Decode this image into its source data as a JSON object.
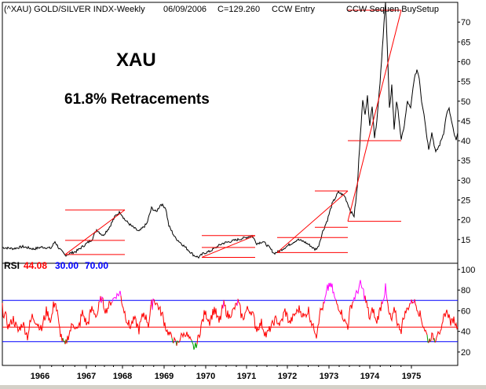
{
  "header": {
    "symbol_line": "(^XAU) GOLD/SILVER INDX-Weekly",
    "date": "06/09/2006",
    "close": "C=129.260",
    "signal": "CCW Entry",
    "setup": "CCW Sequen BuySetup"
  },
  "annotations": {
    "title": "XAU",
    "subtitle": "61.8% Retracements"
  },
  "rsi_legend": {
    "label": "RSI",
    "value": "44.08",
    "low": "30.00",
    "high": "70.00",
    "value_color": "#ff0000",
    "band_color": "#0000ff"
  },
  "chart_data": [
    {
      "type": "line",
      "panel": "price",
      "title": "(^XAU) GOLD/SILVER INDX-Weekly",
      "y_ticks": [
        15,
        20,
        25,
        30,
        35,
        40,
        45,
        50,
        55,
        60,
        65,
        70
      ],
      "ylim": [
        9,
        75
      ],
      "x_ticks": [
        "1966",
        "1967",
        "1968",
        "1969",
        "1970",
        "1971",
        "1972",
        "1973",
        "1974",
        "1975"
      ],
      "series": [
        {
          "color": "#000000",
          "anchors": [
            [
              0,
              13
            ],
            [
              14,
              12.7
            ],
            [
              26,
              13.2
            ],
            [
              40,
              12.6
            ],
            [
              50,
              13.1
            ],
            [
              62,
              12.8
            ],
            [
              67,
              14.5
            ],
            [
              72,
              12.8
            ],
            [
              80,
              11
            ],
            [
              86,
              11.5
            ],
            [
              94,
              12
            ],
            [
              104,
              13.5
            ],
            [
              114,
              15
            ],
            [
              120,
              17.5
            ],
            [
              128,
              16
            ],
            [
              136,
              18
            ],
            [
              144,
              21
            ],
            [
              150,
              22
            ],
            [
              156,
              20
            ],
            [
              164,
              18.5
            ],
            [
              174,
              17
            ],
            [
              184,
              19
            ],
            [
              190,
              23
            ],
            [
              196,
              22
            ],
            [
              202,
              24
            ],
            [
              208,
              23
            ],
            [
              212,
              18.5
            ],
            [
              220,
              15.5
            ],
            [
              228,
              14
            ],
            [
              236,
              12.5
            ],
            [
              244,
              11
            ],
            [
              250,
              10.5
            ],
            [
              256,
              11.5
            ],
            [
              264,
              12
            ],
            [
              272,
              13
            ],
            [
              280,
              14
            ],
            [
              290,
              14.5
            ],
            [
              300,
              15
            ],
            [
              310,
              15.5
            ],
            [
              318,
              16
            ],
            [
              324,
              14
            ],
            [
              332,
              14.5
            ],
            [
              340,
              13
            ],
            [
              346,
              11.5
            ],
            [
              352,
              12
            ],
            [
              360,
              13
            ],
            [
              368,
              14
            ],
            [
              376,
              15
            ],
            [
              384,
              14.5
            ],
            [
              392,
              13.5
            ],
            [
              398,
              12.5
            ],
            [
              402,
              13
            ],
            [
              408,
              17
            ],
            [
              414,
              20
            ],
            [
              420,
              24
            ],
            [
              428,
              27
            ],
            [
              436,
              26
            ],
            [
              440,
              24
            ],
            [
              444,
              22
            ],
            [
              448,
              21
            ],
            [
              452,
              28
            ],
            [
              456,
              42
            ],
            [
              459,
              50
            ],
            [
              462,
              47
            ],
            [
              465,
              51
            ],
            [
              468,
              44
            ],
            [
              471,
              49
            ],
            [
              474,
              41
            ],
            [
              477,
              45
            ],
            [
              480,
              52
            ],
            [
              483,
              60
            ],
            [
              486,
              70
            ],
            [
              488,
              75
            ],
            [
              490,
              65
            ],
            [
              493,
              48
            ],
            [
              496,
              54
            ],
            [
              499,
              43
            ],
            [
              502,
              50
            ],
            [
              505,
              46
            ],
            [
              508,
              40
            ],
            [
              512,
              44
            ],
            [
              516,
              50
            ],
            [
              520,
              48
            ],
            [
              524,
              55
            ],
            [
              528,
              58
            ],
            [
              531,
              56
            ],
            [
              534,
              50
            ],
            [
              537,
              47
            ],
            [
              540,
              42
            ],
            [
              543,
              38
            ],
            [
              547,
              42
            ],
            [
              552,
              37
            ],
            [
              557,
              39
            ],
            [
              562,
              42
            ],
            [
              566,
              47
            ],
            [
              569,
              48
            ],
            [
              572,
              45
            ],
            [
              575,
              42
            ],
            [
              578,
              40
            ],
            [
              580,
              42
            ]
          ]
        }
      ],
      "retracement_lines": [
        {
          "x": [
            80,
            156
          ],
          "y": 22.5
        },
        {
          "x": [
            80,
            156
          ],
          "y": 14.8
        },
        {
          "x": [
            80,
            156
          ],
          "y": 11.2
        },
        {
          "x": [
            254,
            322
          ],
          "y": 16
        },
        {
          "x": [
            254,
            322
          ],
          "y": 13
        },
        {
          "x": [
            254,
            322
          ],
          "y": 10.5
        },
        {
          "x": [
            350,
            440
          ],
          "y": 15.5
        },
        {
          "x": [
            350,
            440
          ],
          "y": 11.7
        },
        {
          "x": [
            398,
            440
          ],
          "y": 27.3
        },
        {
          "x": [
            398,
            440
          ],
          "y": 18.1
        },
        {
          "x": [
            440,
            508
          ],
          "y": 73
        },
        {
          "x": [
            440,
            508
          ],
          "y": 40
        },
        {
          "x": [
            440,
            508
          ],
          "y": 19.6
        }
      ],
      "trend_lines": [
        {
          "x": [
            80,
            156
          ],
          "y": [
            11.2,
            22.5
          ]
        },
        {
          "x": [
            254,
            322
          ],
          "y": [
            10.5,
            16
          ]
        },
        {
          "x": [
            350,
            440
          ],
          "y": [
            11.7,
            27.3
          ]
        },
        {
          "x": [
            440,
            508
          ],
          "y": [
            19.6,
            73
          ]
        }
      ],
      "marker_color": "#ff0000"
    },
    {
      "type": "line",
      "panel": "rsi",
      "title": "RSI",
      "y_ticks": [
        20,
        40,
        60,
        80,
        100
      ],
      "ylim": [
        7,
        106
      ],
      "x_ticks": [
        "1966",
        "1967",
        "1968",
        "1969",
        "1970",
        "1971",
        "1972",
        "1973",
        "1974",
        "1975"
      ],
      "levels": [
        70,
        30,
        44.08
      ],
      "series": [
        {
          "name": "RSI",
          "color": "#ff0000",
          "overbought_color": "#ff00ff",
          "oversold_color": "#00a000",
          "anchors": [
            [
              0,
              62
            ],
            [
              8,
              45
            ],
            [
              14,
              52
            ],
            [
              20,
              40
            ],
            [
              26,
              48
            ],
            [
              32,
              36
            ],
            [
              38,
              55
            ],
            [
              44,
              48
            ],
            [
              50,
              42
            ],
            [
              56,
              60
            ],
            [
              62,
              50
            ],
            [
              67,
              72
            ],
            [
              72,
              45
            ],
            [
              76,
              32
            ],
            [
              80,
              26
            ],
            [
              84,
              36
            ],
            [
              90,
              48
            ],
            [
              96,
              40
            ],
            [
              102,
              58
            ],
            [
              108,
              46
            ],
            [
              114,
              62
            ],
            [
              120,
              55
            ],
            [
              126,
              72
            ],
            [
              132,
              60
            ],
            [
              138,
              68
            ],
            [
              144,
              74
            ],
            [
              150,
              77
            ],
            [
              156,
              58
            ],
            [
              162,
              44
            ],
            [
              168,
              52
            ],
            [
              174,
              42
            ],
            [
              180,
              58
            ],
            [
              186,
              48
            ],
            [
              192,
              72
            ],
            [
              198,
              65
            ],
            [
              204,
              55
            ],
            [
              210,
              40
            ],
            [
              216,
              34
            ],
            [
              222,
              27
            ],
            [
              228,
              36
            ],
            [
              234,
              38
            ],
            [
              240,
              30
            ],
            [
              244,
              24
            ],
            [
              248,
              28
            ],
            [
              252,
              42
            ],
            [
              258,
              58
            ],
            [
              264,
              50
            ],
            [
              270,
              62
            ],
            [
              276,
              48
            ],
            [
              282,
              66
            ],
            [
              288,
              54
            ],
            [
              294,
              60
            ],
            [
              300,
              68
            ],
            [
              306,
              52
            ],
            [
              312,
              62
            ],
            [
              318,
              58
            ],
            [
              324,
              42
            ],
            [
              330,
              48
            ],
            [
              336,
              36
            ],
            [
              342,
              44
            ],
            [
              348,
              52
            ],
            [
              354,
              46
            ],
            [
              360,
              60
            ],
            [
              366,
              48
            ],
            [
              372,
              56
            ],
            [
              378,
              62
            ],
            [
              384,
              54
            ],
            [
              390,
              60
            ],
            [
              396,
              44
            ],
            [
              400,
              38
            ],
            [
              404,
              58
            ],
            [
              410,
              66
            ],
            [
              416,
              86
            ],
            [
              420,
              82
            ],
            [
              424,
              70
            ],
            [
              428,
              64
            ],
            [
              432,
              58
            ],
            [
              436,
              50
            ],
            [
              440,
              46
            ],
            [
              444,
              64
            ],
            [
              448,
              72
            ],
            [
              452,
              78
            ],
            [
              456,
              86
            ],
            [
              460,
              78
            ],
            [
              464,
              66
            ],
            [
              468,
              52
            ],
            [
              472,
              62
            ],
            [
              476,
              48
            ],
            [
              480,
              58
            ],
            [
              484,
              70
            ],
            [
              488,
              80
            ],
            [
              492,
              58
            ],
            [
              496,
              50
            ],
            [
              500,
              62
            ],
            [
              504,
              46
            ],
            [
              508,
              42
            ],
            [
              512,
              56
            ],
            [
              516,
              62
            ],
            [
              520,
              68
            ],
            [
              524,
              70
            ],
            [
              528,
              64
            ],
            [
              532,
              56
            ],
            [
              536,
              46
            ],
            [
              540,
              38
            ],
            [
              543,
              30
            ],
            [
              547,
              36
            ],
            [
              551,
              32
            ],
            [
              555,
              42
            ],
            [
              559,
              36
            ],
            [
              563,
              56
            ],
            [
              567,
              60
            ],
            [
              571,
              48
            ],
            [
              575,
              52
            ],
            [
              578,
              46
            ],
            [
              580,
              44
            ]
          ]
        }
      ]
    }
  ]
}
